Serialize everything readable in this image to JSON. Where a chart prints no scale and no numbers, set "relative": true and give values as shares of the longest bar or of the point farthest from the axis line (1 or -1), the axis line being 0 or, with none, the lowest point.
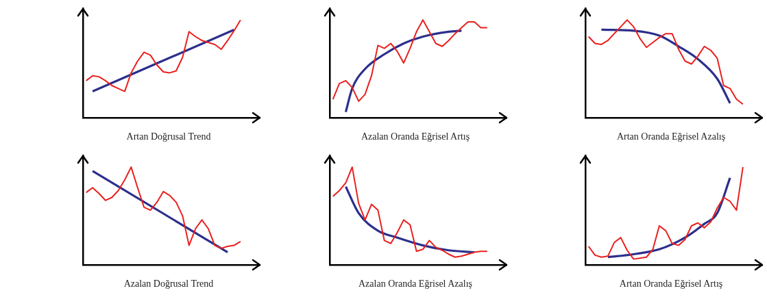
{
  "chart_data": [
    {
      "type": "line",
      "title": "Artan Doğrusal Trend",
      "relative": true,
      "categories": [
        null,
        null,
        null,
        null,
        null,
        null,
        null,
        null,
        null,
        null,
        null,
        null,
        null,
        null,
        null,
        null,
        null,
        null,
        null,
        null,
        null,
        null,
        null,
        null,
        null
      ],
      "series": [
        {
          "color": "#e8201e",
          "values": [
            0.38,
            0.43,
            0.42,
            0.38,
            0.33,
            0.3,
            0.27,
            0.46,
            0.58,
            0.67,
            0.64,
            0.54,
            0.47,
            0.46,
            0.48,
            0.62,
            0.88,
            0.83,
            0.79,
            0.77,
            0.75,
            0.7,
            0.79,
            0.89,
            1.0
          ]
        },
        {
          "color": "#2b2f8c",
          "values": [
            null,
            0.27,
            null,
            null,
            null,
            null,
            null,
            null,
            null,
            null,
            null,
            null,
            null,
            null,
            null,
            null,
            null,
            null,
            null,
            null,
            null,
            null,
            null,
            0.9,
            null
          ]
        }
      ]
    },
    {
      "type": "line",
      "title": "Azalan Oranda Eğrisel Artış",
      "relative": true,
      "categories": [
        null,
        null,
        null,
        null,
        null,
        null,
        null,
        null,
        null,
        null,
        null,
        null,
        null,
        null,
        null,
        null,
        null,
        null,
        null,
        null,
        null,
        null,
        null,
        null,
        null
      ],
      "series": [
        {
          "color": "#e8201e",
          "values": [
            0.19,
            0.35,
            0.38,
            0.31,
            0.17,
            0.24,
            0.43,
            0.74,
            0.71,
            0.76,
            0.68,
            0.56,
            0.71,
            0.88,
            1.0,
            0.88,
            0.76,
            0.73,
            0.79,
            0.86,
            0.92,
            0.98,
            0.98,
            0.92,
            0.92
          ]
        },
        {
          "color": "#2b2f8c",
          "values": [
            null,
            null,
            0.06,
            0.3,
            null,
            0.5,
            null,
            null,
            0.65,
            null,
            null,
            0.76,
            null,
            null,
            0.83,
            null,
            null,
            null,
            0.88,
            null,
            0.89,
            null,
            null,
            null,
            null
          ]
        }
      ]
    },
    {
      "type": "line",
      "title": "Artan Oranda Eğrisel Azalış",
      "relative": true,
      "categories": [
        null,
        null,
        null,
        null,
        null,
        null,
        null,
        null,
        null,
        null,
        null,
        null,
        null,
        null,
        null,
        null,
        null,
        null,
        null,
        null,
        null,
        null,
        null,
        null,
        null
      ],
      "series": [
        {
          "color": "#e8201e",
          "values": [
            0.83,
            0.76,
            0.75,
            0.79,
            0.86,
            0.93,
            1.0,
            0.93,
            0.81,
            0.72,
            0.77,
            0.82,
            0.86,
            0.86,
            0.7,
            0.58,
            0.55,
            0.63,
            0.73,
            0.69,
            0.61,
            0.33,
            0.3,
            0.19,
            0.14
          ]
        },
        {
          "color": "#2b2f8c",
          "values": [
            null,
            null,
            0.9,
            null,
            null,
            null,
            null,
            0.89,
            null,
            null,
            null,
            0.84,
            null,
            null,
            0.73,
            null,
            null,
            0.6,
            null,
            null,
            0.4,
            null,
            0.15,
            null,
            null
          ]
        }
      ]
    },
    {
      "type": "line",
      "title": "Azalan Doğrusal Trend",
      "relative": true,
      "categories": [
        null,
        null,
        null,
        null,
        null,
        null,
        null,
        null,
        null,
        null,
        null,
        null,
        null,
        null,
        null,
        null,
        null,
        null,
        null,
        null,
        null,
        null,
        null,
        null,
        null
      ],
      "series": [
        {
          "color": "#e8201e",
          "values": [
            0.74,
            0.79,
            0.73,
            0.66,
            0.69,
            0.76,
            0.87,
            1.0,
            0.79,
            0.59,
            0.56,
            0.64,
            0.75,
            0.71,
            0.64,
            0.5,
            0.2,
            0.37,
            0.46,
            0.37,
            0.2,
            0.17,
            0.19,
            0.2,
            0.24
          ]
        },
        {
          "color": "#2b2f8c",
          "values": [
            null,
            0.96,
            null,
            null,
            null,
            null,
            null,
            null,
            null,
            null,
            null,
            null,
            null,
            null,
            null,
            null,
            null,
            null,
            null,
            null,
            null,
            null,
            0.13,
            null,
            null
          ]
        }
      ]
    },
    {
      "type": "line",
      "title": "Azalan Oranda Eğrisel Azalış",
      "relative": true,
      "categories": [
        null,
        null,
        null,
        null,
        null,
        null,
        null,
        null,
        null,
        null,
        null,
        null,
        null,
        null,
        null,
        null,
        null,
        null,
        null,
        null,
        null,
        null,
        null,
        null,
        null
      ],
      "series": [
        {
          "color": "#e8201e",
          "values": [
            0.7,
            0.76,
            0.84,
            1.0,
            0.63,
            0.46,
            0.62,
            0.56,
            0.25,
            0.22,
            0.33,
            0.46,
            0.41,
            0.14,
            0.16,
            0.25,
            0.18,
            0.15,
            0.11,
            0.08,
            0.09,
            0.11,
            0.13,
            0.14,
            0.14
          ]
        },
        {
          "color": "#2b2f8c",
          "values": [
            null,
            null,
            0.8,
            null,
            0.53,
            null,
            null,
            0.35,
            null,
            null,
            0.28,
            null,
            null,
            null,
            0.2,
            null,
            null,
            null,
            0.15,
            null,
            null,
            null,
            0.13,
            null,
            null
          ]
        }
      ]
    },
    {
      "type": "line",
      "title": "Artan Oranda Eğrisel Artış",
      "relative": true,
      "categories": [
        null,
        null,
        null,
        null,
        null,
        null,
        null,
        null,
        null,
        null,
        null,
        null,
        null,
        null,
        null,
        null,
        null,
        null,
        null,
        null,
        null,
        null,
        null,
        null,
        null
      ],
      "series": [
        {
          "color": "#e8201e",
          "values": [
            0.19,
            0.1,
            0.08,
            0.09,
            0.23,
            0.28,
            0.15,
            0.06,
            0.07,
            0.08,
            0.16,
            0.4,
            0.35,
            0.22,
            0.2,
            0.26,
            0.4,
            0.43,
            0.38,
            0.44,
            0.58,
            0.69,
            0.65,
            0.56,
            1.0
          ]
        },
        {
          "color": "#2b2f8c",
          "values": [
            null,
            null,
            null,
            0.08,
            null,
            null,
            null,
            0.11,
            null,
            null,
            null,
            0.16,
            null,
            null,
            null,
            0.28,
            null,
            null,
            0.42,
            null,
            0.53,
            null,
            0.89,
            null,
            null
          ]
        }
      ]
    }
  ]
}
